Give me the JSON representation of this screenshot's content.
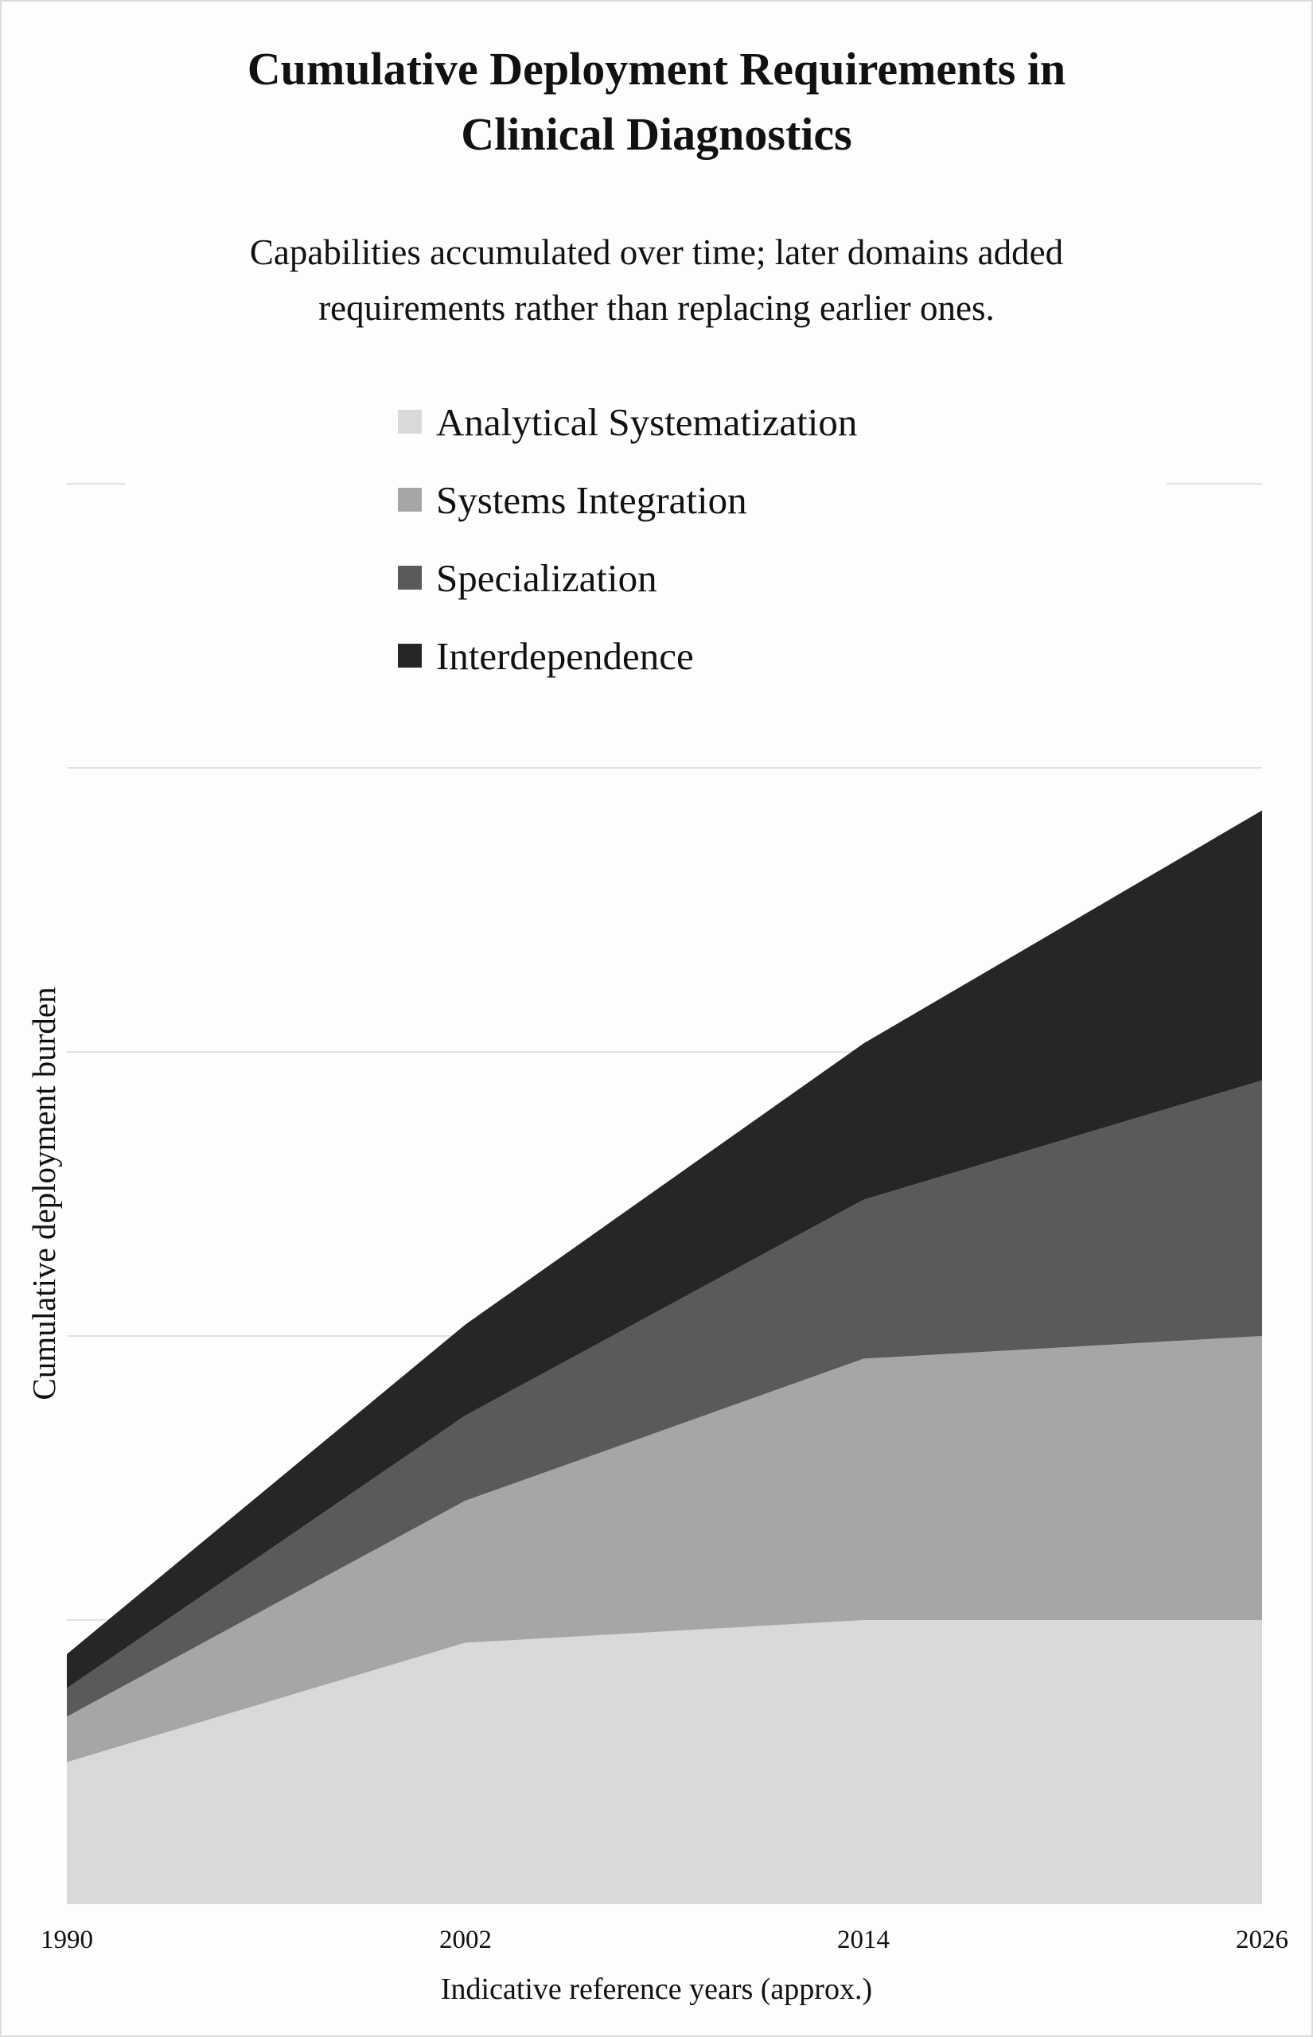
{
  "title": {
    "line1": "Cumulative Deployment Requirements in",
    "line2": "Clinical Diagnostics"
  },
  "subtitle": {
    "line1": "Capabilities accumulated over time; later domains added",
    "line2": "requirements rather than replacing earlier ones."
  },
  "legend": [
    {
      "label": "Analytical Systematization",
      "color": "#d9d9d9"
    },
    {
      "label": "Systems Integration",
      "color": "#a6a6a6"
    },
    {
      "label": "Specialization",
      "color": "#5a5a5a"
    },
    {
      "label": "Interdependence",
      "color": "#262626"
    }
  ],
  "axes": {
    "xlabel": "Indicative reference years (approx.)",
    "ylabel": "Cumulative deployment burden",
    "xticks": [
      "1990",
      "2002",
      "2014",
      "2026"
    ]
  },
  "chart_data": {
    "type": "area",
    "stacked": true,
    "title": "Cumulative Deployment Requirements in Clinical Diagnostics",
    "subtitle": "Capabilities accumulated over time; later domains added requirements rather than replacing earlier ones.",
    "xlabel": "Indicative reference years (approx.)",
    "ylabel": "Cumulative deployment burden",
    "x": [
      1990,
      2002,
      2014,
      2026
    ],
    "series": [
      {
        "name": "Analytical Systematization",
        "color": "#d9d9d9",
        "values": [
          0.5,
          0.92,
          1.0,
          1.0
        ]
      },
      {
        "name": "Systems Integration",
        "color": "#a6a6a6",
        "values": [
          0.16,
          0.5,
          0.92,
          1.0
        ]
      },
      {
        "name": "Specialization",
        "color": "#5a5a5a",
        "values": [
          0.1,
          0.3,
          0.56,
          0.9
        ]
      },
      {
        "name": "Interdependence",
        "color": "#262626",
        "values": [
          0.12,
          0.32,
          0.55,
          0.95
        ]
      }
    ],
    "ylim": [
      0,
      5
    ],
    "grid": {
      "y": true,
      "x": false,
      "y_step": 1
    },
    "y_tick_labels_shown": false,
    "legend_position": "top-center"
  }
}
